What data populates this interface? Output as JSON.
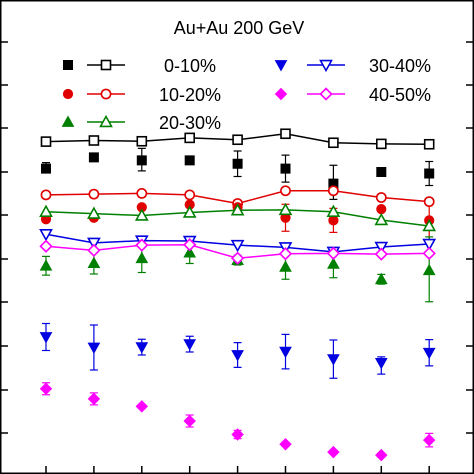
{
  "chart_data": {
    "type": "scatter",
    "title": "Au+Au  200 GeV",
    "x": [
      1,
      2,
      3,
      4,
      5,
      6,
      7,
      8,
      9
    ],
    "ylim": [
      0,
      100
    ],
    "series": [
      {
        "name": "0-10%",
        "kind": "line",
        "color": "#000000",
        "marker": "square-open",
        "values": [
          84.9,
          85.2,
          85.0,
          85.9,
          85.4,
          87.0,
          84.6,
          84.3,
          84.2
        ],
        "errors": null
      },
      {
        "name": "",
        "kind": "points",
        "color": "#000000",
        "marker": "square-filled",
        "values": [
          77.7,
          80.7,
          79.9,
          79.9,
          79.0,
          77.7,
          73.7,
          76.8,
          76.4
        ],
        "errors": [
          [
            1.1,
            1.6
          ],
          [
            0.5,
            0.5
          ],
          [
            2.8,
            3.2
          ],
          [
            0.5,
            0.5
          ],
          [
            3.4,
            3.4
          ],
          [
            3.6,
            3.6
          ],
          [
            4.2,
            4.9
          ],
          [
            0.5,
            0.5
          ],
          [
            3.2,
            3.2
          ]
        ]
      },
      {
        "name": "10-20%",
        "kind": "line",
        "color": "#e00000",
        "marker": "circle-open",
        "values": [
          70.7,
          70.9,
          71.1,
          70.7,
          68.4,
          71.8,
          71.8,
          70.0,
          68.9
        ],
        "errors": null
      },
      {
        "name": "",
        "kind": "points",
        "color": "#e00000",
        "marker": "circle-filled",
        "values": [
          64.2,
          64.6,
          67.4,
          68.1,
          67.4,
          64.6,
          63.9,
          66.9,
          63.9
        ],
        "errors": [
          [
            0.5,
            0.5
          ],
          [
            0.5,
            0.5
          ],
          [
            0.5,
            0.5
          ],
          [
            0.5,
            0.5
          ],
          [
            0.5,
            0.5
          ],
          [
            3.6,
            3.6
          ],
          [
            3.2,
            3.2
          ],
          [
            0.5,
            0.5
          ],
          [
            5.3,
            5.3
          ]
        ]
      },
      {
        "name": "20-30%",
        "kind": "line",
        "color": "#008000",
        "marker": "triangle-up-open",
        "values": [
          66.2,
          65.7,
          65.2,
          66.0,
          66.6,
          66.7,
          66.2,
          64.0,
          62.4
        ],
        "errors": null
      },
      {
        "name": "",
        "kind": "points",
        "color": "#008000",
        "marker": "triangle-up-filled",
        "values": [
          51.8,
          52.5,
          53.8,
          55.3,
          53.3,
          51.5,
          52.3,
          48.2,
          50.6
        ],
        "errors": [
          [
            2.5,
            2.5
          ],
          [
            2.9,
            2.9
          ],
          [
            3.8,
            3.8
          ],
          [
            2.9,
            3.3
          ],
          [
            1.3,
            1.3
          ],
          [
            3.3,
            3.3
          ],
          [
            3.7,
            3.7
          ],
          [
            1.3,
            1.3
          ],
          [
            8.4,
            8.9
          ]
        ]
      },
      {
        "name": "30-40%",
        "kind": "line",
        "color": "#0000e0",
        "marker": "triangle-down-open",
        "values": [
          60.2,
          57.9,
          58.5,
          58.4,
          57.3,
          56.7,
          55.5,
          56.8,
          57.6
        ],
        "errors": null
      },
      {
        "name": "",
        "kind": "points",
        "color": "#0000e0",
        "marker": "triangle-down-filled",
        "values": [
          32.8,
          30.0,
          30.1,
          30.9,
          28.0,
          28.9,
          26.9,
          25.9,
          28.6
        ],
        "errors": [
          [
            3.6,
            3.6
          ],
          [
            6.0,
            6.0
          ],
          [
            2.1,
            2.1
          ],
          [
            2.1,
            2.1
          ],
          [
            3.3,
            3.3
          ],
          [
            4.6,
            4.6
          ],
          [
            5.1,
            5.1
          ],
          [
            3.0,
            1.6
          ],
          [
            3.5,
            3.5
          ]
        ]
      },
      {
        "name": "40-50%",
        "kind": "line",
        "color": "#ff00ff",
        "marker": "diamond-open",
        "values": [
          57.0,
          55.9,
          57.3,
          57.4,
          53.8,
          55.0,
          55.1,
          54.9,
          55.1
        ],
        "errors": null
      },
      {
        "name": "",
        "kind": "points",
        "color": "#ff00ff",
        "marker": "diamond-filled",
        "values": [
          19.0,
          16.3,
          14.3,
          10.4,
          6.8,
          4.2,
          2.1,
          1.3,
          5.3
        ],
        "errors": [
          [
            1.6,
            1.6
          ],
          [
            1.6,
            1.6
          ],
          [
            0.5,
            0.5
          ],
          [
            1.6,
            1.6
          ],
          [
            1.1,
            1.1
          ],
          [
            0.5,
            0.5
          ],
          [
            0.5,
            0.5
          ],
          [
            0.5,
            0.5
          ],
          [
            1.8,
            1.8
          ]
        ]
      }
    ]
  }
}
